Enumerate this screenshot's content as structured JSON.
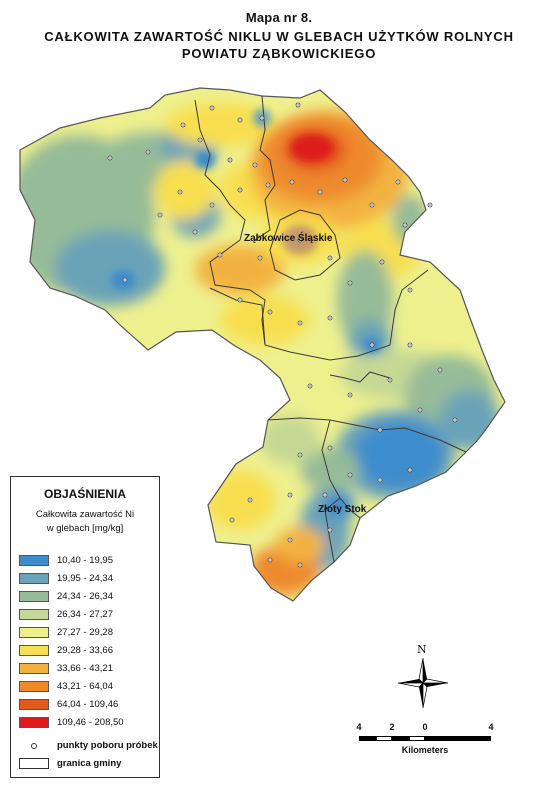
{
  "title": {
    "line1": "Mapa nr 8.",
    "line2": "CAŁKOWITA ZAWARTOŚĆ NIKLU W GLEBACH UŻYTKÓW ROLNYCH",
    "line3": "POWIATU ZĄBKOWICKIEGO"
  },
  "places": {
    "zabkowice": "Ząbkowice Śląskie",
    "zloty_stok": "Złoty Stok"
  },
  "legend": {
    "heading": "OBJAŚNIENIA",
    "subtitle1": "Całkowita zawartość Ni",
    "subtitle2": "w glebach [mg/kg]",
    "classes": [
      {
        "label": "10,40 - 19,95",
        "color": "#3e8ccc"
      },
      {
        "label": "19,95 - 24,34",
        "color": "#6aa3b8"
      },
      {
        "label": "24,34 - 26,34",
        "color": "#96bb98"
      },
      {
        "label": "26,34 - 27,27",
        "color": "#c6d894"
      },
      {
        "label": "27,27 - 29,28",
        "color": "#eef08e"
      },
      {
        "label": "29,28 - 33,66",
        "color": "#f8df4f"
      },
      {
        "label": "33,66 - 43,21",
        "color": "#f3b23f"
      },
      {
        "label": "43,21 - 64,04",
        "color": "#ee8a2e"
      },
      {
        "label": "64,04 - 109,46",
        "color": "#e45a1e"
      },
      {
        "label": "109,46 - 208,50",
        "color": "#dd1c1c"
      }
    ],
    "points_label": "punkty poboru próbek",
    "boundary_label": "granica gminy"
  },
  "north_arrow": {
    "letter": "N",
    "icon": "north-arrow-icon"
  },
  "scale": {
    "labels": [
      "4",
      "2",
      "0",
      "4"
    ],
    "unit": "Kilometers"
  }
}
